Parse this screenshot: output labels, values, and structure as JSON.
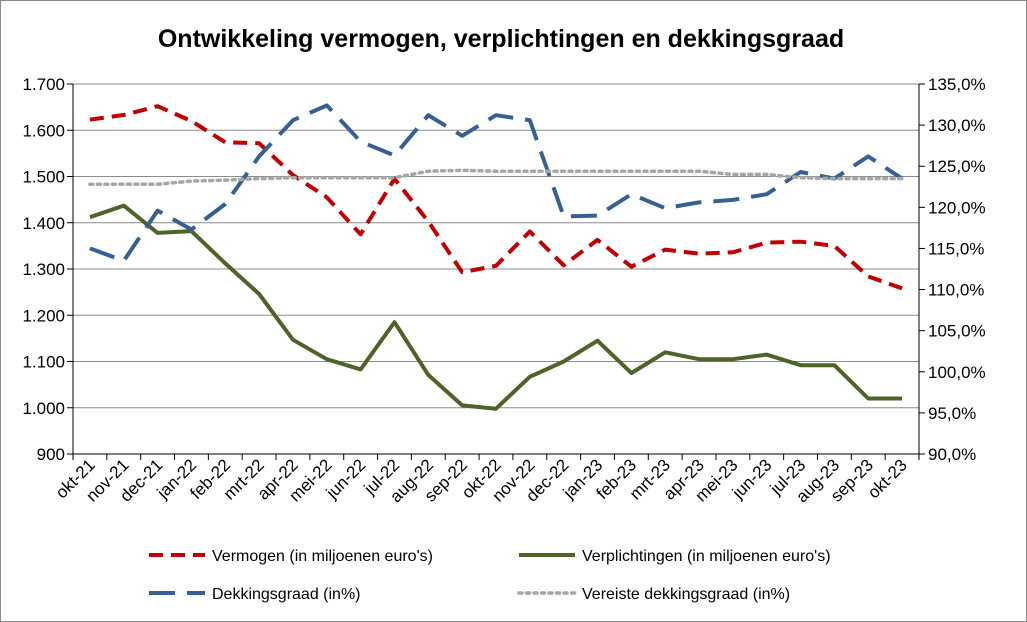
{
  "chart_data": {
    "type": "line",
    "title": "Ontwikkeling vermogen, verplichtingen en dekkingsgraad",
    "categories": [
      "okt-21",
      "nov-21",
      "dec-21",
      "jan-22",
      "feb-22",
      "mrt-22",
      "apr-22",
      "mei-22",
      "jun-22",
      "jul-22",
      "aug-22",
      "sep-22",
      "okt-22",
      "nov-22",
      "dec-22",
      "jan-23",
      "feb-23",
      "mrt-23",
      "apr-23",
      "mei-23",
      "jun-23",
      "jul-23",
      "aug-23",
      "sep-23",
      "okt-23"
    ],
    "y_left": {
      "min": 900,
      "max": 1700,
      "step": 100,
      "tick_labels": [
        "900",
        "1.000",
        "1.100",
        "1.200",
        "1.300",
        "1.400",
        "1.500",
        "1.600",
        "1.700"
      ]
    },
    "y_right": {
      "min": 90,
      "max": 135,
      "step": 5,
      "tick_labels": [
        "90,0%",
        "95,0%",
        "100,0%",
        "105,0%",
        "110,0%",
        "115,0%",
        "120,0%",
        "125,0%",
        "130,0%",
        "135,0%"
      ]
    },
    "grid": true,
    "legend_position": "bottom",
    "series": [
      {
        "name": "Vermogen (in miljoenen euro's)",
        "axis": "left",
        "color": "#c00000",
        "style": "dash",
        "values": [
          1623,
          1633,
          1652,
          1620,
          1574,
          1572,
          1503,
          1455,
          1375,
          1495,
          1403,
          1293,
          1307,
          1381,
          1308,
          1363,
          1305,
          1342,
          1333,
          1336,
          1357,
          1359,
          1350,
          1284,
          1258
        ]
      },
      {
        "name": "Verplichtingen (in miljoenen euro's)",
        "axis": "left",
        "color": "#4f6228",
        "style": "solid",
        "values": [
          1412,
          1437,
          1378,
          1382,
          1312,
          1246,
          1147,
          1105,
          1083,
          1185,
          1071,
          1005,
          998,
          1067,
          1100,
          1145,
          1075,
          1120,
          1105,
          1105,
          1115,
          1092,
          1092,
          1020,
          1020
        ]
      },
      {
        "name": "Dekkingsgraad (in%)",
        "axis": "right",
        "color": "#376092",
        "style": "longdash",
        "values": [
          115.0,
          113.5,
          119.6,
          117.3,
          120.4,
          126.2,
          130.6,
          132.4,
          128.0,
          126.3,
          131.2,
          128.7,
          131.2,
          130.6,
          118.9,
          119.0,
          121.6,
          119.9,
          120.6,
          120.9,
          121.6,
          124.3,
          123.5,
          126.2,
          123.5
        ]
      },
      {
        "name": "Vereiste dekkingsgraad (in%)",
        "axis": "right",
        "color": "#a6a6a6",
        "style": "dot",
        "values": [
          122.8,
          122.8,
          122.8,
          123.2,
          123.3,
          123.5,
          123.6,
          123.6,
          123.6,
          123.6,
          124.4,
          124.5,
          124.4,
          124.4,
          124.4,
          124.4,
          124.4,
          124.4,
          124.4,
          124.0,
          124.0,
          123.6,
          123.5,
          123.5,
          123.5
        ]
      }
    ]
  }
}
